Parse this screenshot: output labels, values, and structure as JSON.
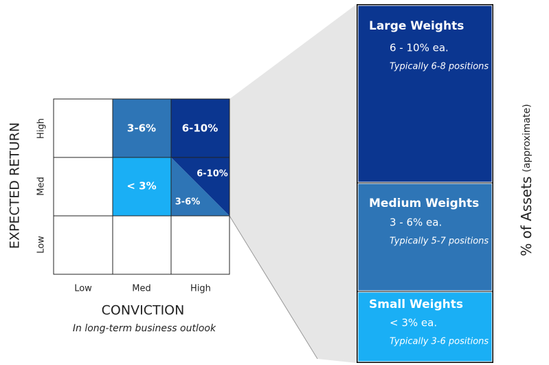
{
  "grid": {
    "y_title": "EXPECTED RETURN",
    "y_labels": [
      "High",
      "Med",
      "Low"
    ],
    "x_labels": [
      "Low",
      "Med",
      "High"
    ],
    "x_title": "CONVICTION",
    "x_subtitle": "In long-term business outlook",
    "cells": {
      "high_med": "3-6%",
      "high_high": "6-10%",
      "med_med": "< 3%",
      "med_high_upper": "6-10%",
      "med_high_lower": "3-6%"
    }
  },
  "weights": {
    "side_label": "% of Assets",
    "side_note": "(approximate)",
    "sections": [
      {
        "title": "Large Weights",
        "range": "6 - 10% ea.",
        "note": "Typically 6-8 positions"
      },
      {
        "title": "Medium Weights",
        "range": "3 - 6% ea.",
        "note": "Typically 5-7 positions"
      },
      {
        "title": "Small Weights",
        "range": "< 3% ea.",
        "note": "Typically 3-6 positions"
      }
    ]
  }
}
